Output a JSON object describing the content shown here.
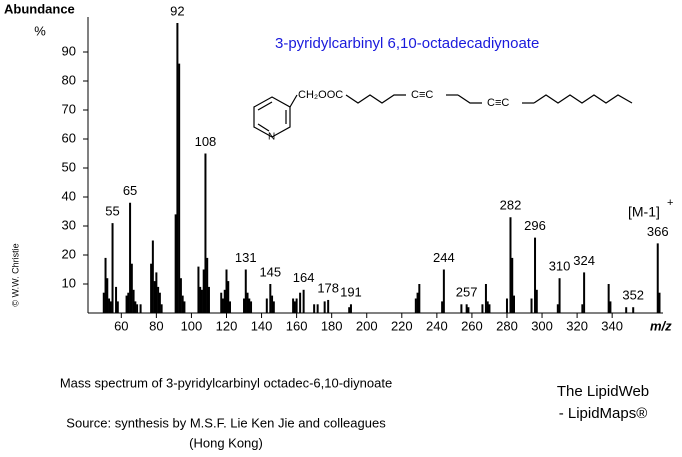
{
  "chart_data": {
    "type": "spectrum",
    "title": "3-pyridylcarbinyl 6,10-octadecadiynoate",
    "y_label": "Abundance",
    "y_unit": "%",
    "x_label": "m/z",
    "annotation": "[M-1]",
    "annotation_sup": "+",
    "xlim": [
      41,
      369
    ],
    "xticks": [
      60,
      80,
      100,
      120,
      140,
      160,
      180,
      200,
      220,
      240,
      260,
      280,
      300,
      320,
      340
    ],
    "ylim": [
      0,
      100
    ],
    "yticks": [
      10,
      20,
      30,
      40,
      50,
      60,
      70,
      80,
      90
    ],
    "grid": false,
    "color": "#000000",
    "title_color": "#1a1adc",
    "series": [
      {
        "show_labels": true,
        "x": [
          55,
          65,
          92,
          108,
          131,
          145,
          164,
          178,
          191,
          244,
          257,
          282,
          296,
          310,
          324,
          352,
          366
        ],
        "values": [
          31,
          38,
          100,
          55,
          15,
          10,
          8,
          4.5,
          3,
          15,
          3,
          33,
          26,
          12,
          14,
          2,
          24
        ]
      },
      {
        "show_labels": false,
        "x": [
          50,
          51,
          52,
          53,
          54,
          57,
          58,
          63,
          64,
          66,
          67,
          68,
          69,
          71,
          77,
          78,
          79,
          80,
          81,
          82,
          83,
          91,
          93,
          94,
          95,
          96,
          104,
          105,
          106,
          107,
          109,
          110,
          117,
          118,
          119,
          120,
          121,
          122,
          130,
          132,
          133,
          134,
          143,
          146,
          147,
          158,
          159,
          160,
          162,
          170,
          172,
          176,
          190,
          228,
          229,
          230,
          243,
          254,
          258,
          266,
          268,
          269,
          270,
          280,
          283,
          284,
          294,
          297,
          309,
          323,
          338,
          339,
          348,
          367
        ],
        "values": [
          7,
          19,
          12,
          5,
          4,
          9,
          4,
          6,
          7,
          17,
          8,
          4,
          3,
          3,
          17,
          25,
          11,
          14,
          9,
          7,
          3,
          34,
          86,
          12,
          6,
          4,
          16,
          9,
          8,
          15,
          19,
          9,
          7,
          5,
          8,
          15,
          11,
          4,
          5,
          7,
          5,
          4,
          5,
          6,
          4,
          5,
          4,
          5,
          7,
          3,
          3,
          4,
          2,
          5,
          7,
          10,
          4,
          3,
          2,
          3,
          10,
          4,
          3,
          5,
          19,
          6,
          5,
          8,
          3,
          3,
          10,
          4,
          2,
          7
        ]
      }
    ]
  },
  "structure": {
    "ester": "CH₂OOC",
    "triple_1": "C≡C",
    "triple_2": "C≡C",
    "nitrogen": "N"
  },
  "caption": "Mass spectrum of 3-pyridylcarbinyl octadec-6,10-diynoate",
  "source_1": "Source: synthesis by M.S.F. Lie Ken Jie and colleagues",
  "source_2": "(Hong Kong)",
  "brand_1": "The LipidWeb",
  "brand_2": "- LipidMaps®",
  "copyright": "© W.W. Christie"
}
